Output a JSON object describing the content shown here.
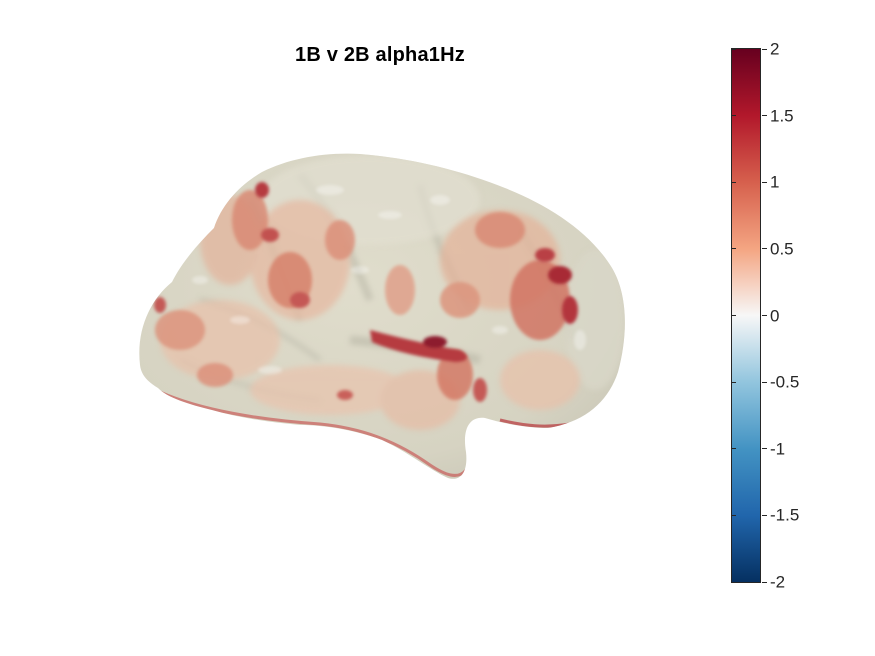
{
  "figure": {
    "title": "1B v 2B alpha1Hz"
  },
  "colorbar": {
    "colormap": "diverging red-blue",
    "range": [
      -2,
      2
    ],
    "colors": [
      "#67001f",
      "#b2182b",
      "#d6604d",
      "#f4a582",
      "#f7f7f7",
      "#92c5de",
      "#4393c3",
      "#2166ac",
      "#053061"
    ],
    "ticks": [
      "2",
      "1.5",
      "1",
      "0.5",
      "0",
      "-0.5",
      "-1",
      "-1.5",
      "-2"
    ]
  },
  "surface": {
    "view": "lateral",
    "base_color": "#d8d5c4"
  }
}
